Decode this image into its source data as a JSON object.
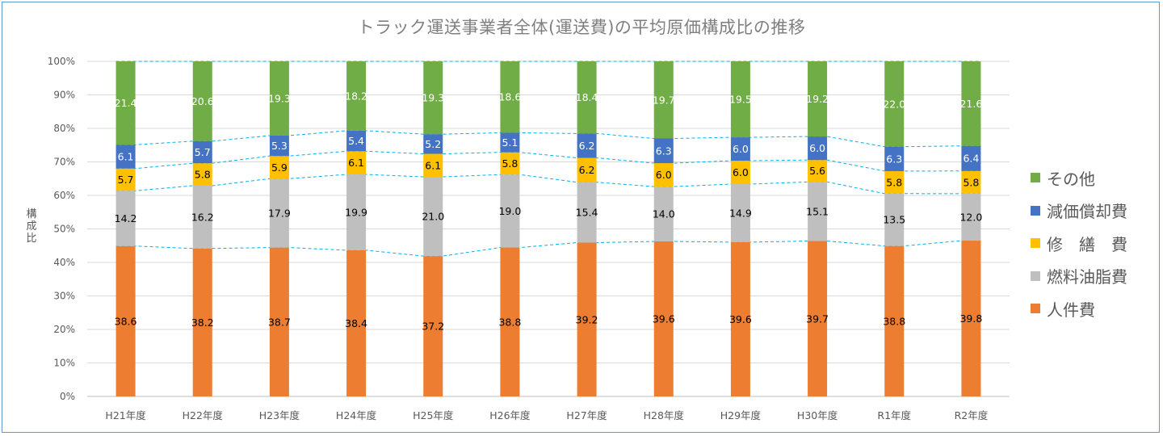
{
  "chart_data": {
    "type": "stacked-bar-100",
    "title": "トラック運送事業者全体(運送費)の平均原価構成比の推移",
    "ylabel": "構成比",
    "ylim": [
      0,
      100
    ],
    "yticks": [
      "0%",
      "10%",
      "20%",
      "30%",
      "40%",
      "50%",
      "60%",
      "70%",
      "80%",
      "90%",
      "100%"
    ],
    "grid": true,
    "legend_position": "right",
    "categories": [
      "H21年度",
      "H22年度",
      "H23年度",
      "H24年度",
      "H25年度",
      "H26年度",
      "H27年度",
      "H28年度",
      "H29年度",
      "H30年度",
      "R1年度",
      "R2年度"
    ],
    "series": [
      {
        "name": "人件費",
        "color": "#ed7d31",
        "label_color": "#000000",
        "values": [
          38.6,
          38.2,
          38.7,
          38.4,
          37.2,
          38.8,
          39.2,
          39.6,
          39.6,
          39.7,
          38.8,
          39.8
        ]
      },
      {
        "name": "燃料油脂費",
        "color": "#bfbfbf",
        "label_color": "#000000",
        "values": [
          14.2,
          16.2,
          17.9,
          19.9,
          21.0,
          19.0,
          15.4,
          14.0,
          14.9,
          15.1,
          13.5,
          12.0
        ]
      },
      {
        "name": "修　繕　費",
        "color": "#ffc000",
        "label_color": "#000000",
        "values": [
          5.7,
          5.8,
          5.9,
          6.1,
          6.1,
          5.8,
          6.2,
          6.0,
          6.0,
          5.6,
          5.8,
          5.8
        ]
      },
      {
        "name": "減価償却費",
        "color": "#4472c4",
        "label_color": "#ffffff",
        "values": [
          6.1,
          5.7,
          5.3,
          5.4,
          5.2,
          5.1,
          6.2,
          6.3,
          6.0,
          6.0,
          6.3,
          6.4
        ]
      },
      {
        "name": "その他",
        "color": "#70ad47",
        "label_color": "#ffffff",
        "values": [
          21.4,
          20.6,
          19.3,
          18.2,
          19.3,
          18.6,
          18.4,
          19.7,
          19.5,
          19.2,
          22.0,
          21.6
        ]
      }
    ],
    "series_lines": true,
    "series_line_color": "#00b0f0",
    "legend_order": [
      4,
      3,
      2,
      1,
      0
    ]
  }
}
